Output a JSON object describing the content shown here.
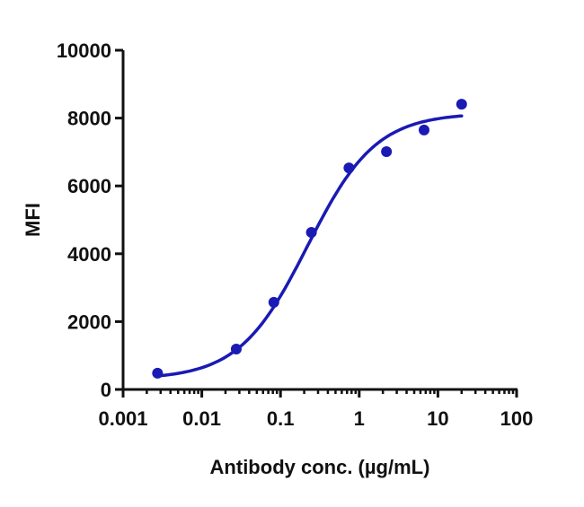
{
  "chart_data": {
    "type": "scatter",
    "title": "",
    "xlabel": "Antibody conc. (µg/mL)",
    "ylabel": "MFI",
    "xscale": "log",
    "xlim": [
      0.001,
      100
    ],
    "ylim": [
      0,
      10000
    ],
    "x_ticks": [
      0.001,
      0.01,
      0.1,
      1,
      10,
      100
    ],
    "x_tick_labels": [
      "0.001",
      "0.01",
      "0.1",
      "1",
      "10",
      "100"
    ],
    "y_ticks": [
      0,
      2000,
      4000,
      6000,
      8000,
      10000
    ],
    "y_tick_labels": [
      "0",
      "2000",
      "4000",
      "6000",
      "8000",
      "10000"
    ],
    "grid": false,
    "legend": null,
    "series": [
      {
        "name": "MFI",
        "color": "#1a1ab4",
        "x": [
          0.00274,
          0.0274,
          0.0823,
          0.247,
          0.741,
          2.22,
          6.67,
          20
        ],
        "y": [
          480,
          1190,
          2570,
          4630,
          6530,
          7010,
          7650,
          8410
        ]
      }
    ],
    "fit_curve": {
      "model": "4PL",
      "color": "#1a1ab4",
      "bottom": 300,
      "top": 8150,
      "ec50": 0.22,
      "hill": 1.0,
      "x_range": [
        0.00274,
        20
      ]
    }
  }
}
